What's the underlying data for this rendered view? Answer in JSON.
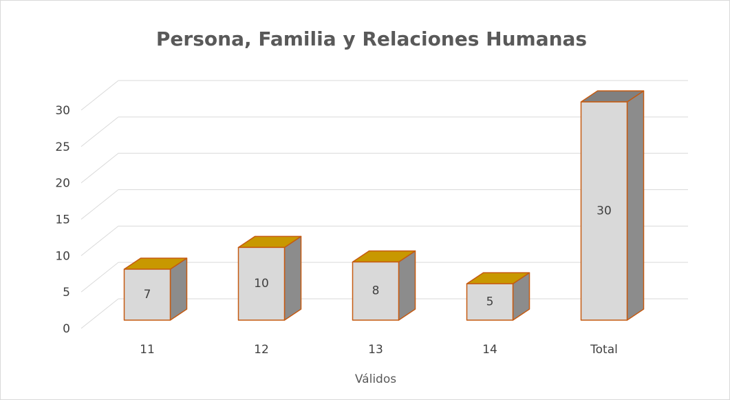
{
  "chart_data": {
    "type": "bar3d",
    "title": "Persona, Familia y Relaciones Humanas",
    "categories": [
      "11",
      "12",
      "13",
      "14",
      "Total"
    ],
    "values": [
      7,
      10,
      8,
      5,
      30
    ],
    "x_label": "Válidos",
    "ylim": [
      0,
      30
    ],
    "yticks": [
      0,
      5,
      10,
      15,
      20,
      25,
      30
    ],
    "grid": true,
    "front_color": "#d9d9d9",
    "side_color": "#8c8c8c",
    "edge_color": "#c55a11",
    "top_colors": [
      "#c89800",
      "#c89800",
      "#c89800",
      "#c89800",
      "#808080"
    ]
  }
}
